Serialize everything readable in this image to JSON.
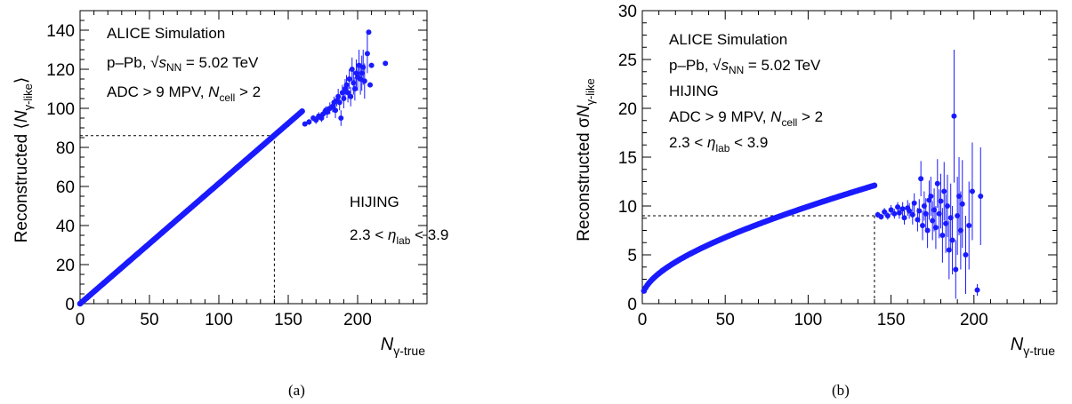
{
  "captions": {
    "a": "(a)",
    "b": "(b)"
  },
  "style": {
    "marker_color": "#1a1aff",
    "guide_color": "#000000"
  },
  "chart_data": [
    {
      "type": "scatter",
      "panel": "a",
      "grid": false,
      "xlim": [
        0,
        250
      ],
      "ylim": [
        0,
        150
      ],
      "xticks": [
        0,
        50,
        100,
        150,
        200
      ],
      "yticks": [
        0,
        20,
        40,
        60,
        80,
        100,
        120,
        140
      ],
      "xlabel": {
        "main": "N",
        "sub": "γ-true"
      },
      "ylabel": {
        "pre": "Reconstructed ⟨",
        "main": "N",
        "sub": "γ-like",
        "post": "⟩"
      },
      "guides": {
        "x": 140,
        "y": 86
      },
      "annotations_topleft": [
        {
          "text": "ALICE Simulation"
        },
        {
          "pre": "p–Pb, ",
          "sqrt": "s",
          "sqrt_sub": "NN",
          "post": " = 5.02 TeV"
        },
        {
          "pre": "ADC > 9 MPV, ",
          "ital": "N",
          "sub": "cell",
          "post": " > 2"
        }
      ],
      "annotations_right": [
        {
          "text": "HIJING"
        },
        {
          "pre": "2.3 < ",
          "ital": "η",
          "sub": "lab",
          "post": " < 3.9"
        }
      ],
      "curve": {
        "from": 0,
        "to": 160,
        "step": 1
      },
      "points": [
        {
          "x": 162,
          "y": 92,
          "err": 1
        },
        {
          "x": 165,
          "y": 93,
          "err": 1.5
        },
        {
          "x": 168,
          "y": 95,
          "err": 1.5
        },
        {
          "x": 170,
          "y": 94,
          "err": 2
        },
        {
          "x": 172,
          "y": 96,
          "err": 2
        },
        {
          "x": 174,
          "y": 95,
          "err": 2
        },
        {
          "x": 175,
          "y": 97,
          "err": 2
        },
        {
          "x": 177,
          "y": 99,
          "err": 2
        },
        {
          "x": 178,
          "y": 98,
          "err": 3
        },
        {
          "x": 180,
          "y": 100,
          "err": 3
        },
        {
          "x": 182,
          "y": 101,
          "err": 3
        },
        {
          "x": 183,
          "y": 103,
          "err": 3
        },
        {
          "x": 184,
          "y": 99,
          "err": 4
        },
        {
          "x": 185,
          "y": 104,
          "err": 3
        },
        {
          "x": 186,
          "y": 106,
          "err": 4
        },
        {
          "x": 187,
          "y": 103,
          "err": 4
        },
        {
          "x": 188,
          "y": 95,
          "err": 4
        },
        {
          "x": 189,
          "y": 108,
          "err": 4
        },
        {
          "x": 190,
          "y": 105,
          "err": 5
        },
        {
          "x": 191,
          "y": 110,
          "err": 5
        },
        {
          "x": 192,
          "y": 112,
          "err": 5
        },
        {
          "x": 193,
          "y": 108,
          "err": 5
        },
        {
          "x": 194,
          "y": 115,
          "err": 5
        },
        {
          "x": 195,
          "y": 106,
          "err": 5
        },
        {
          "x": 196,
          "y": 120,
          "err": 6
        },
        {
          "x": 197,
          "y": 113,
          "err": 6
        },
        {
          "x": 198,
          "y": 110,
          "err": 6
        },
        {
          "x": 199,
          "y": 118,
          "err": 7
        },
        {
          "x": 200,
          "y": 116,
          "err": 7
        },
        {
          "x": 201,
          "y": 122,
          "err": 8
        },
        {
          "x": 202,
          "y": 115,
          "err": 8
        },
        {
          "x": 203,
          "y": 118,
          "err": 9
        },
        {
          "x": 204,
          "y": 121,
          "err": 9
        },
        {
          "x": 205,
          "y": 114,
          "err": 9
        },
        {
          "x": 207,
          "y": 128,
          "err": 10
        },
        {
          "x": 208,
          "y": 139,
          "err": 0
        },
        {
          "x": 209,
          "y": 112,
          "err": 0
        },
        {
          "x": 210,
          "y": 122,
          "err": 0
        },
        {
          "x": 220,
          "y": 123,
          "err": 0
        }
      ]
    },
    {
      "type": "scatter",
      "panel": "b",
      "grid": false,
      "xlim": [
        0,
        250
      ],
      "ylim": [
        0,
        30
      ],
      "xticks": [
        0,
        50,
        100,
        150,
        200
      ],
      "yticks": [
        0,
        5,
        10,
        15,
        20,
        25,
        30
      ],
      "xlabel": {
        "main": "N",
        "sub": "γ-true"
      },
      "ylabel": {
        "pre": "Reconstructed σ",
        "main": "N",
        "sub": "γ-like"
      },
      "guides": {
        "x": 140,
        "y": 9
      },
      "annotations_topleft": [
        {
          "text": "ALICE Simulation"
        },
        {
          "pre": "p–Pb, ",
          "sqrt": "s",
          "sqrt_sub": "NN",
          "post": " = 5.02 TeV"
        },
        {
          "text": "HIJING"
        },
        {
          "pre": "ADC > 9 MPV, ",
          "ital": "N",
          "sub": "cell",
          "post": " > 2"
        },
        {
          "pre": "2.3 < ",
          "ital": "η",
          "sub": "lab",
          "post": " < 3.9"
        }
      ],
      "annotations_right": [],
      "curve": {
        "from": 1,
        "to": 140,
        "step": 1
      },
      "points": [
        {
          "x": 142,
          "y": 9.1,
          "err": 0.3
        },
        {
          "x": 144,
          "y": 8.9,
          "err": 0.3
        },
        {
          "x": 146,
          "y": 9.4,
          "err": 0.4
        },
        {
          "x": 148,
          "y": 9.0,
          "err": 0.4
        },
        {
          "x": 150,
          "y": 9.6,
          "err": 0.5
        },
        {
          "x": 152,
          "y": 9.2,
          "err": 0.5
        },
        {
          "x": 154,
          "y": 9.9,
          "err": 0.5
        },
        {
          "x": 155,
          "y": 9.3,
          "err": 0.6
        },
        {
          "x": 157,
          "y": 9.7,
          "err": 0.7
        },
        {
          "x": 158,
          "y": 8.8,
          "err": 0.7
        },
        {
          "x": 160,
          "y": 9.8,
          "err": 0.8
        },
        {
          "x": 161,
          "y": 9.5,
          "err": 0.8
        },
        {
          "x": 163,
          "y": 9.1,
          "err": 1.0
        },
        {
          "x": 164,
          "y": 10.3,
          "err": 1.0
        },
        {
          "x": 166,
          "y": 8.6,
          "err": 1.2
        },
        {
          "x": 167,
          "y": 9.5,
          "err": 1.2
        },
        {
          "x": 168,
          "y": 12.8,
          "err": 1.8
        },
        {
          "x": 169,
          "y": 8.0,
          "err": 1.5
        },
        {
          "x": 170,
          "y": 10.0,
          "err": 1.5
        },
        {
          "x": 171,
          "y": 9.2,
          "err": 1.6
        },
        {
          "x": 172,
          "y": 7.5,
          "err": 1.8
        },
        {
          "x": 173,
          "y": 10.6,
          "err": 2.0
        },
        {
          "x": 174,
          "y": 11.0,
          "err": 2.0
        },
        {
          "x": 175,
          "y": 8.5,
          "err": 2.0
        },
        {
          "x": 176,
          "y": 9.6,
          "err": 2.2
        },
        {
          "x": 177,
          "y": 7.8,
          "err": 2.2
        },
        {
          "x": 178,
          "y": 12.3,
          "err": 2.5
        },
        {
          "x": 179,
          "y": 9.2,
          "err": 2.5
        },
        {
          "x": 180,
          "y": 10.5,
          "err": 2.8
        },
        {
          "x": 181,
          "y": 7.0,
          "err": 2.8
        },
        {
          "x": 182,
          "y": 11.5,
          "err": 3.0
        },
        {
          "x": 183,
          "y": 8.2,
          "err": 3.0
        },
        {
          "x": 184,
          "y": 10.0,
          "err": 3.2
        },
        {
          "x": 185,
          "y": 5.5,
          "err": 3.0
        },
        {
          "x": 186,
          "y": 8.8,
          "err": 3.5
        },
        {
          "x": 187,
          "y": 6.5,
          "err": 3.5
        },
        {
          "x": 188,
          "y": 19.2,
          "err": 6.8
        },
        {
          "x": 189,
          "y": 3.5,
          "err": 3.0
        },
        {
          "x": 190,
          "y": 9.0,
          "err": 4.0
        },
        {
          "x": 191,
          "y": 11.0,
          "err": 4.0
        },
        {
          "x": 192,
          "y": 7.5,
          "err": 4.0
        },
        {
          "x": 193,
          "y": 10.2,
          "err": 4.5
        },
        {
          "x": 195,
          "y": 5.0,
          "err": 4.0
        },
        {
          "x": 197,
          "y": 8.0,
          "err": 4.5
        },
        {
          "x": 199,
          "y": 11.5,
          "err": 5.0
        },
        {
          "x": 202,
          "y": 1.4,
          "err": 0.6
        },
        {
          "x": 204,
          "y": 11.0,
          "err": 5.0
        }
      ]
    }
  ]
}
